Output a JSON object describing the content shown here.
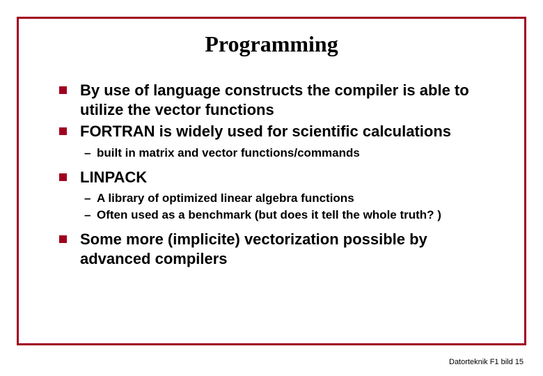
{
  "colors": {
    "accent": "#a00020",
    "text": "#000000",
    "background": "#ffffff"
  },
  "typography": {
    "title_font": "Times New Roman",
    "body_font": "Arial",
    "title_size": 32,
    "bullet_size": 22,
    "sub_bullet_size": 17,
    "footer_size": 11
  },
  "title": "Programming",
  "bullets": {
    "b1": "By use of language constructs the compiler is able to utilize the vector functions",
    "b2": "FORTRAN is widely used for scientific calculations",
    "b2_subs": {
      "s1": "built in matrix and vector functions/commands"
    },
    "b3": "LINPACK",
    "b3_subs": {
      "s1": "A library of optimized linear algebra functions",
      "s2": "Often used as a benchmark (but does it tell the whole truth? )"
    },
    "b4": "Some more (implicite) vectorization possible by advanced compilers"
  },
  "footer": "Datorteknik F1 bild 15"
}
